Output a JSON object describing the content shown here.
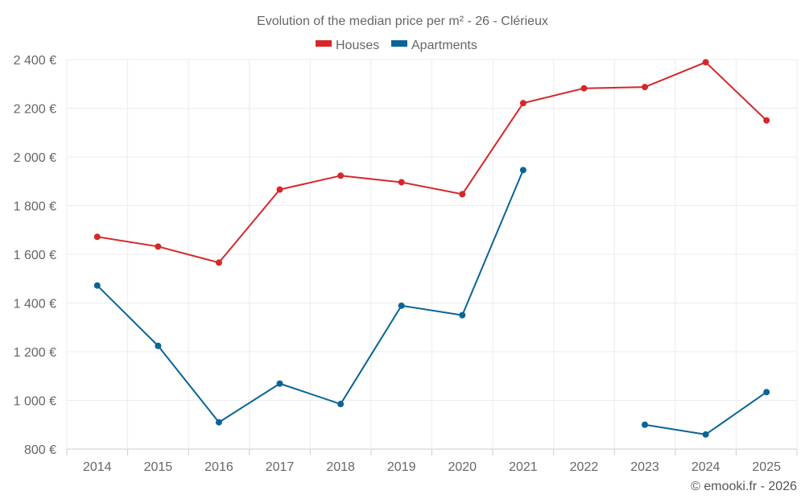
{
  "chart_data": {
    "type": "line",
    "title": "Evolution of the median price per m² - 26 - Clérieux",
    "categories": [
      "2014",
      "2015",
      "2016",
      "2017",
      "2018",
      "2019",
      "2020",
      "2021",
      "2022",
      "2023",
      "2024",
      "2025"
    ],
    "series": [
      {
        "name": "Houses",
        "color": "#d62728",
        "values": [
          1672,
          1632,
          1566,
          1866,
          1923,
          1896,
          1847,
          2221,
          2282,
          2287,
          2389,
          2150
        ]
      },
      {
        "name": "Apartments",
        "color": "#0a6496",
        "values": [
          1472,
          1224,
          910,
          1069,
          985,
          1389,
          1350,
          1946,
          null,
          900,
          860,
          1034
        ]
      }
    ],
    "ylim": [
      800,
      2400
    ],
    "yticks": [
      800,
      1000,
      1200,
      1400,
      1600,
      1800,
      2000,
      2200,
      2400
    ],
    "ytick_labels": [
      "800 €",
      "1 000 €",
      "1 200 €",
      "1 400 €",
      "1 600 €",
      "1 800 €",
      "2 000 €",
      "2 200 €",
      "2 400 €"
    ],
    "xlabel": "",
    "ylabel": "",
    "legend_position": "top-center"
  },
  "copyright": "© emooki.fr - 2026"
}
